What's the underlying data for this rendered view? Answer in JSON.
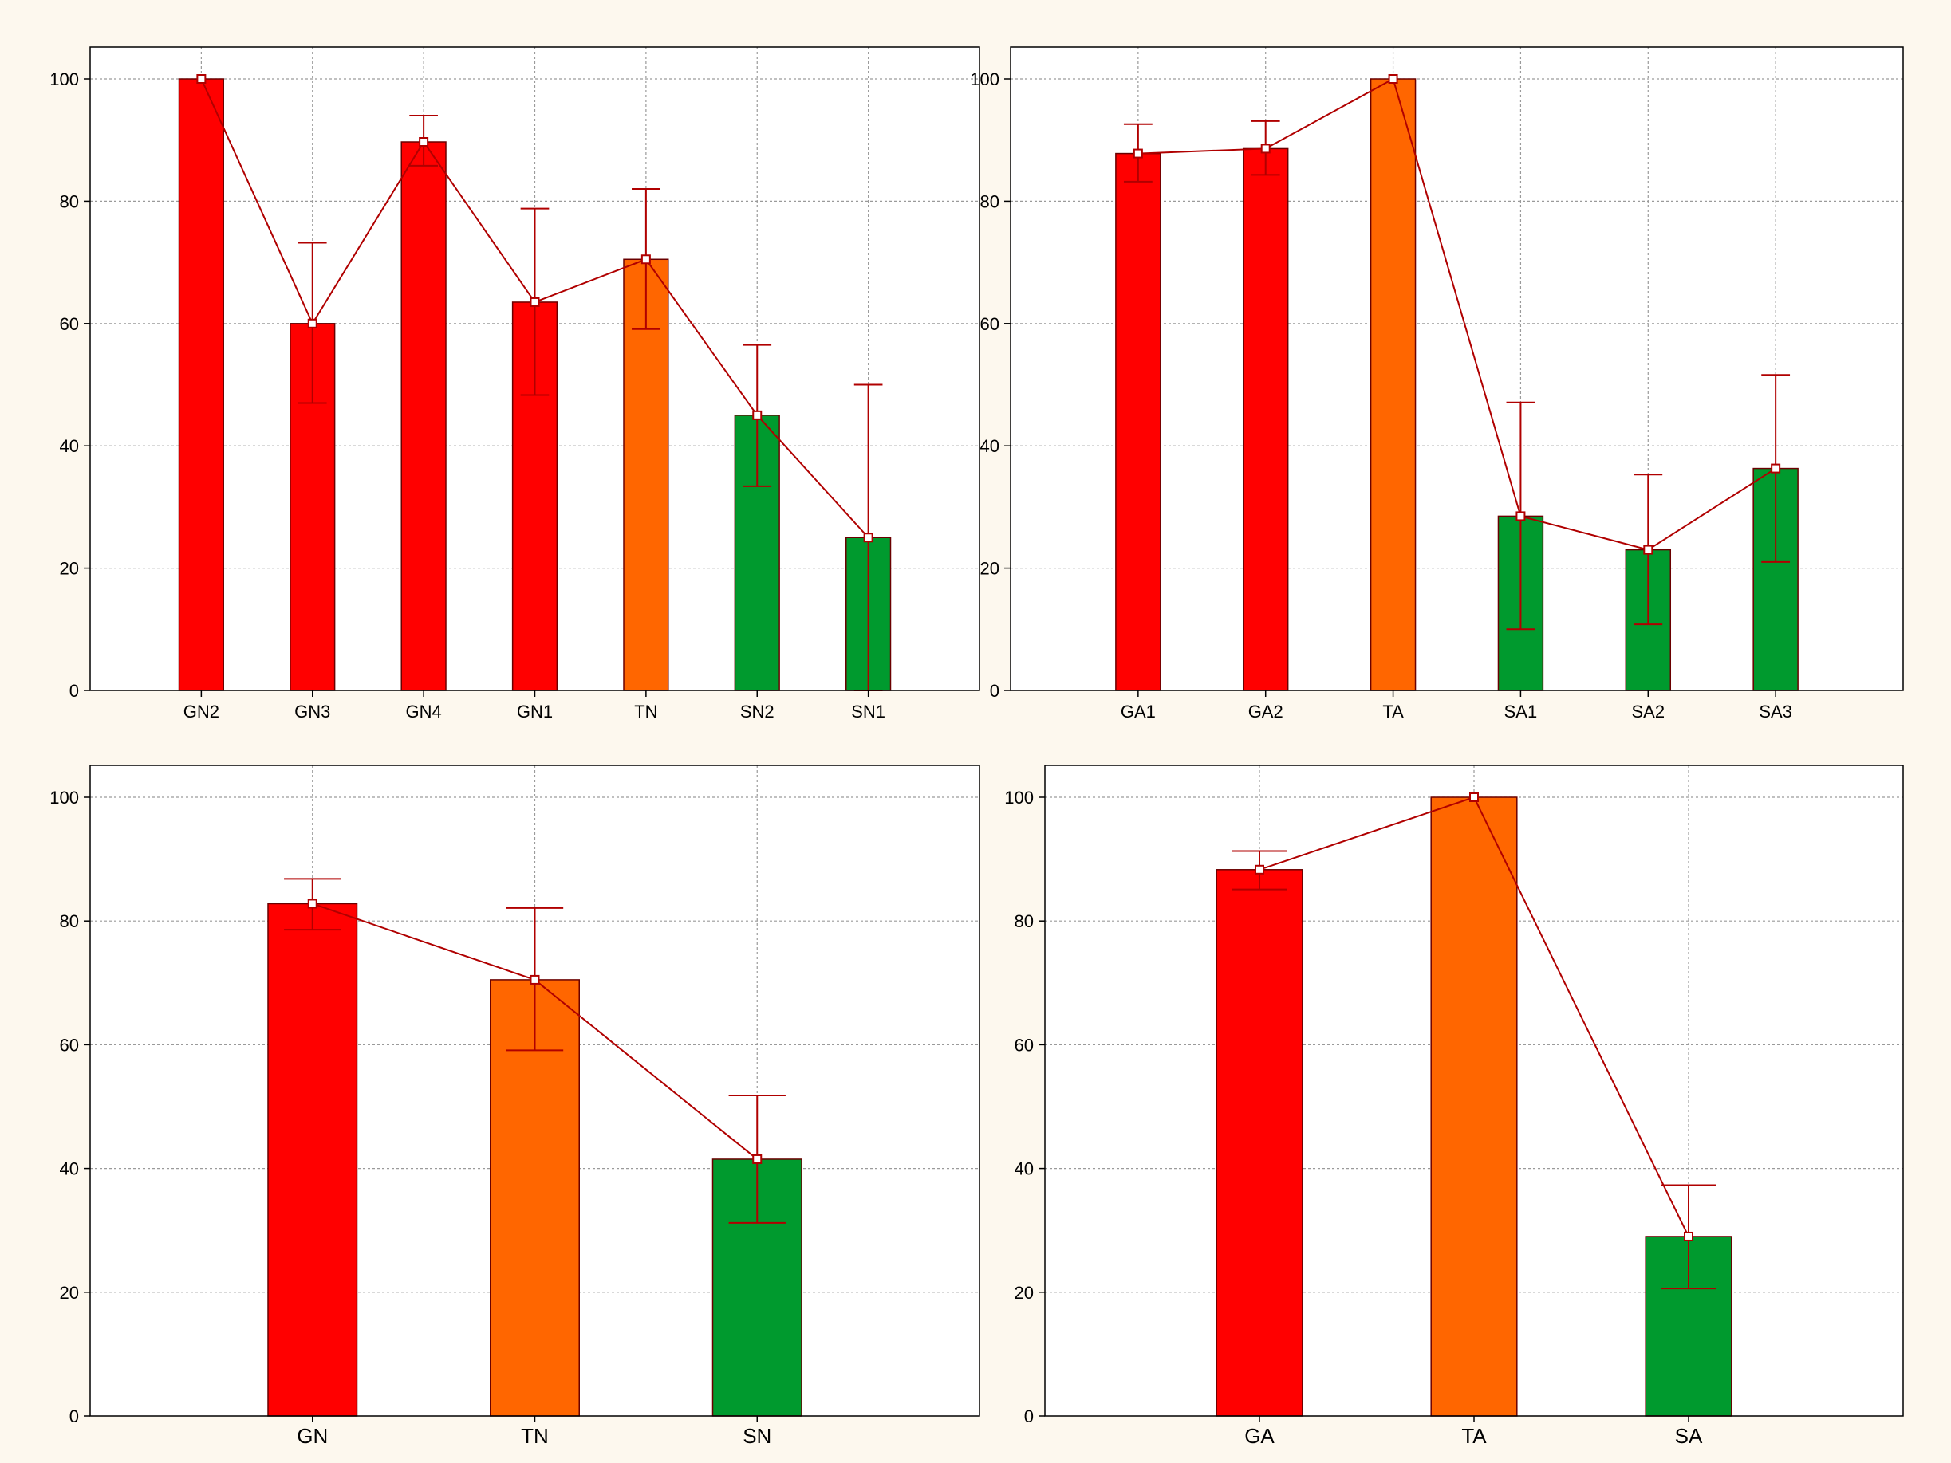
{
  "colors": {
    "background": "#fdf8ee",
    "plot_background": "#ffffff",
    "red": "#ff0000",
    "orange": "#ff6600",
    "green": "#009a2e",
    "line": "#b00000",
    "grid": "#9a9a9a"
  },
  "chart_data": [
    {
      "type": "bar",
      "categories": [
        "GN2",
        "GN3",
        "GN4",
        "GN1",
        "TN",
        "SN2",
        "SN1"
      ],
      "values": [
        100,
        60,
        89.7,
        63.5,
        70.5,
        45,
        25
      ],
      "error_low": [
        null,
        47,
        85.8,
        48.3,
        59.1,
        33.4,
        0
      ],
      "error_high": [
        null,
        73.2,
        94,
        78.8,
        82,
        56.5,
        50
      ],
      "bar_colors": [
        "red",
        "red",
        "red",
        "red",
        "orange",
        "green",
        "green"
      ],
      "ylim": [
        0,
        100
      ],
      "yticks": [
        0,
        20,
        40,
        60,
        80,
        100
      ],
      "grid": true,
      "connecting_line": true,
      "title": "",
      "xlabel": "",
      "ylabel": ""
    },
    {
      "type": "bar",
      "categories": [
        "GA1",
        "GA2",
        "TA",
        "SA1",
        "SA2",
        "SA3"
      ],
      "values": [
        87.8,
        88.6,
        100,
        28.5,
        23,
        36.3
      ],
      "error_low": [
        83.2,
        84.3,
        null,
        10,
        10.8,
        21
      ],
      "error_high": [
        92.6,
        93.1,
        null,
        47.1,
        35.3,
        51.6
      ],
      "bar_colors": [
        "red",
        "red",
        "orange",
        "green",
        "green",
        "green"
      ],
      "ylim": [
        0,
        100
      ],
      "yticks": [
        0,
        20,
        40,
        60,
        80,
        100
      ],
      "grid": true,
      "connecting_line": true,
      "title": "",
      "xlabel": "",
      "ylabel": ""
    },
    {
      "type": "bar",
      "categories": [
        "GN",
        "TN",
        "SN"
      ],
      "values": [
        82.8,
        70.5,
        41.5
      ],
      "error_low": [
        78.6,
        59.1,
        31.2
      ],
      "error_high": [
        86.8,
        82.1,
        51.8
      ],
      "bar_colors": [
        "red",
        "orange",
        "green"
      ],
      "ylim": [
        0,
        100
      ],
      "yticks": [
        0,
        20,
        40,
        60,
        80,
        100
      ],
      "grid": true,
      "connecting_line": true,
      "title": "",
      "xlabel": "",
      "ylabel": ""
    },
    {
      "type": "bar",
      "categories": [
        "GA",
        "TA",
        "SA"
      ],
      "values": [
        88.3,
        100,
        29
      ],
      "error_low": [
        85.1,
        null,
        20.6
      ],
      "error_high": [
        91.3,
        null,
        37.3
      ],
      "bar_colors": [
        "red",
        "orange",
        "green"
      ],
      "ylim": [
        0,
        100
      ],
      "yticks": [
        0,
        20,
        40,
        60,
        80,
        100
      ],
      "grid": true,
      "connecting_line": true,
      "title": "",
      "xlabel": "",
      "ylabel": ""
    }
  ]
}
